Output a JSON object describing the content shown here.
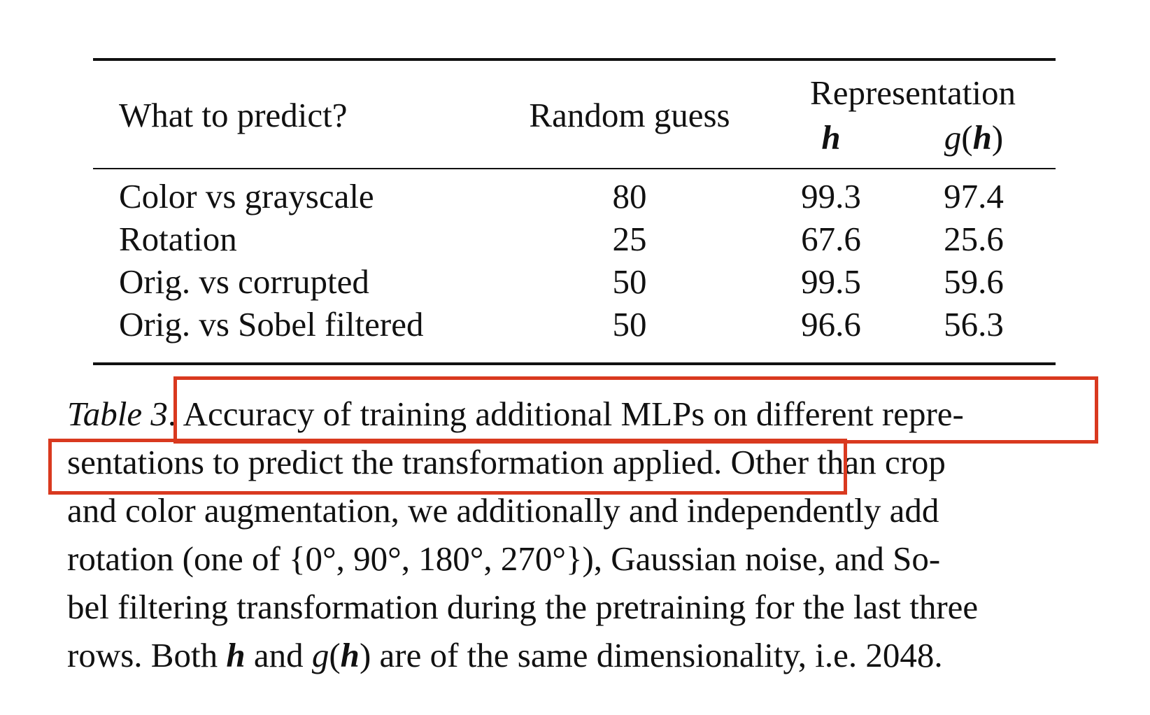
{
  "table": {
    "headers": {
      "what": "What to predict?",
      "random": "Random guess",
      "representation": "Representation",
      "h": "h",
      "g": "g",
      "g_open": "(",
      "g_h": "h",
      "g_close": ")"
    },
    "rows": [
      {
        "label": "Color vs grayscale",
        "random": "80",
        "h": "99.3",
        "gh": "97.4"
      },
      {
        "label": "Rotation",
        "random": "25",
        "h": "67.6",
        "gh": "25.6"
      },
      {
        "label": "Orig. vs corrupted",
        "random": "50",
        "h": "99.5",
        "gh": "59.6"
      },
      {
        "label": "Orig. vs Sobel filtered",
        "random": "50",
        "h": "96.6",
        "gh": "56.3"
      }
    ]
  },
  "caption": {
    "lines": [
      {
        "label": "Table 3",
        "text": ". Accuracy of training additional MLPs on different repre-"
      },
      {
        "text": "sentations to predict the transformation applied. Other than crop"
      },
      {
        "text": "and color augmentation, we additionally and independently add"
      },
      {
        "text": "rotation (one of {0°, 90°, 180°, 270°}), Gaussian noise, and So-"
      },
      {
        "text": "bel filtering transformation during the pretraining for the last three"
      },
      {
        "a": "rows. Both ",
        "m1": "h",
        "b": " and ",
        "m2g": "g",
        "m2o": "(",
        "m2h": "h",
        "m2c": ")",
        "c": " are of the same dimensionality, i.e. 2048."
      }
    ]
  },
  "highlight_color": "#d9391f"
}
